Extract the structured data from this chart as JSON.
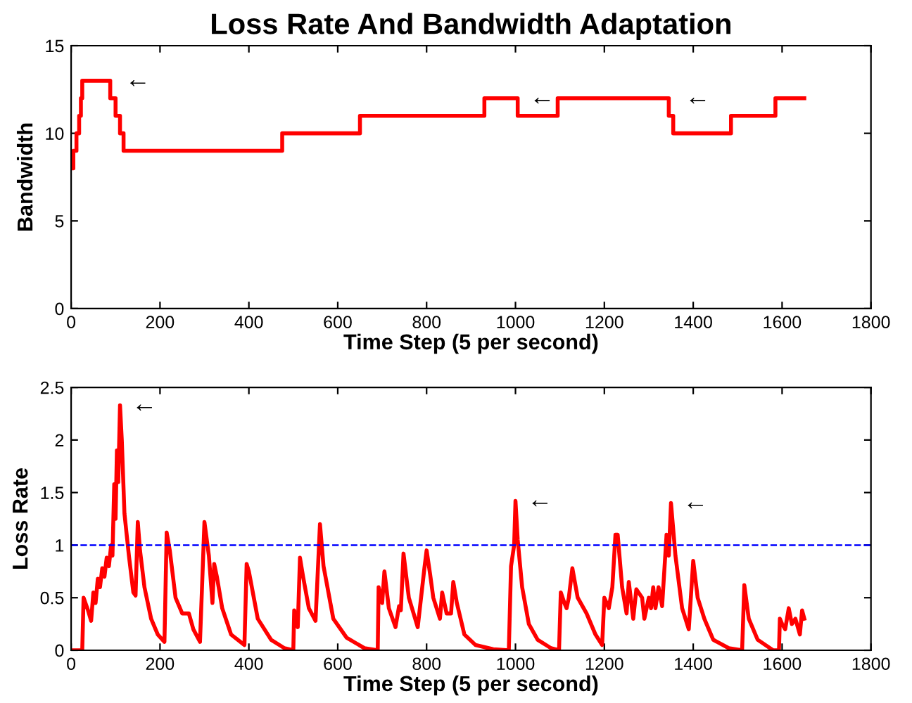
{
  "chart_data": [
    {
      "type": "step",
      "title": "Loss Rate And Bandwidth Adaptation",
      "xlabel": "Time Step (5 per second)",
      "ylabel": "Bandwidth",
      "xlim": [
        0,
        1800
      ],
      "xticks": [
        0,
        200,
        400,
        600,
        800,
        1000,
        1200,
        1400,
        1600,
        1800
      ],
      "ylim": [
        0,
        15
      ],
      "yticks": [
        0,
        5,
        10,
        15
      ],
      "grid": false,
      "series": [
        {
          "color": "#ff0000",
          "x": [
            0,
            5,
            12,
            18,
            22,
            25,
            88,
            100,
            110,
            118,
            475,
            650,
            930,
            1005,
            1095,
            1345,
            1355,
            1485,
            1585,
            1650
          ],
          "values": [
            8,
            9,
            10,
            11,
            12,
            13,
            12,
            11,
            10,
            9,
            10,
            11,
            12,
            11,
            12,
            11,
            10,
            11,
            12,
            12
          ]
        }
      ],
      "annotations": [
        {
          "text": "←",
          "x": 95,
          "y": 13
        },
        {
          "text": "←",
          "x": 1005,
          "y": 12
        },
        {
          "text": "←",
          "x": 1355,
          "y": 12
        }
      ]
    },
    {
      "type": "line",
      "xlabel": "Time Step (5 per second)",
      "ylabel": "Loss Rate",
      "xlim": [
        0,
        1800
      ],
      "xticks": [
        0,
        200,
        400,
        600,
        800,
        1000,
        1200,
        1400,
        1600,
        1800
      ],
      "ylim": [
        0,
        2.5
      ],
      "yticks": [
        0,
        0.5,
        1,
        1.5,
        2,
        2.5
      ],
      "grid": false,
      "ref_lines": [
        {
          "axis": "y",
          "value": 1,
          "color": "#0000ff",
          "line_style": "dashed"
        }
      ],
      "series": [
        {
          "color": "#ff0000",
          "x": [
            0,
            25,
            28,
            38,
            45,
            50,
            55,
            60,
            65,
            70,
            75,
            80,
            85,
            90,
            93,
            97,
            100,
            103,
            106,
            110,
            114,
            120,
            130,
            140,
            145,
            150,
            155,
            165,
            180,
            195,
            210,
            215,
            222,
            235,
            250,
            265,
            275,
            290,
            300,
            310,
            318,
            322,
            328,
            340,
            360,
            390,
            395,
            400,
            420,
            450,
            480,
            500,
            502,
            510,
            515,
            522,
            535,
            550,
            560,
            568,
            590,
            620,
            660,
            690,
            692,
            700,
            705,
            715,
            730,
            738,
            742,
            748,
            760,
            780,
            795,
            800,
            808,
            815,
            830,
            835,
            845,
            855,
            860,
            868,
            885,
            910,
            950,
            985,
            990,
            997,
            1000,
            1005,
            1015,
            1030,
            1050,
            1080,
            1098,
            1102,
            1110,
            1115,
            1120,
            1128,
            1140,
            1160,
            1180,
            1195,
            1200,
            1210,
            1218,
            1225,
            1230,
            1240,
            1250,
            1255,
            1265,
            1272,
            1285,
            1290,
            1300,
            1305,
            1310,
            1315,
            1322,
            1330,
            1340,
            1345,
            1350,
            1360,
            1375,
            1390,
            1400,
            1410,
            1425,
            1445,
            1480,
            1510,
            1515,
            1525,
            1545,
            1580,
            1593,
            1595,
            1600,
            1607,
            1615,
            1622,
            1630,
            1640,
            1645,
            1650
          ],
          "values": [
            0,
            0,
            0.5,
            0.38,
            0.28,
            0.55,
            0.45,
            0.68,
            0.6,
            0.78,
            0.7,
            0.88,
            0.8,
            1.0,
            0.9,
            1.58,
            1.25,
            1.9,
            1.6,
            2.33,
            2.0,
            1.3,
            0.9,
            0.55,
            0.52,
            1.22,
            0.95,
            0.6,
            0.3,
            0.15,
            0.08,
            1.12,
            0.95,
            0.5,
            0.35,
            0.35,
            0.2,
            0.08,
            1.22,
            0.9,
            0.45,
            0.82,
            0.7,
            0.4,
            0.15,
            0.05,
            0.82,
            0.75,
            0.3,
            0.1,
            0.02,
            0.0,
            0.38,
            0.22,
            0.88,
            0.7,
            0.4,
            0.28,
            1.2,
            0.8,
            0.3,
            0.12,
            0.02,
            0,
            0.6,
            0.45,
            0.75,
            0.4,
            0.22,
            0.42,
            0.38,
            0.92,
            0.5,
            0.22,
            0.78,
            0.95,
            0.72,
            0.5,
            0.3,
            0.55,
            0.35,
            0.35,
            0.65,
            0.45,
            0.15,
            0.05,
            0.01,
            0,
            0.8,
            1.0,
            1.42,
            1.05,
            0.6,
            0.25,
            0.1,
            0.02,
            0,
            0.55,
            0.45,
            0.4,
            0.5,
            0.78,
            0.5,
            0.35,
            0.15,
            0.05,
            0.5,
            0.4,
            0.6,
            1.1,
            1.1,
            0.6,
            0.35,
            0.65,
            0.3,
            0.58,
            0.5,
            0.3,
            0.5,
            0.4,
            0.6,
            0.4,
            0.6,
            0.42,
            1.1,
            0.9,
            1.4,
            0.9,
            0.4,
            0.2,
            0.85,
            0.5,
            0.3,
            0.1,
            0.02,
            0,
            0.62,
            0.3,
            0.1,
            0,
            0,
            0.3,
            0.25,
            0.2,
            0.4,
            0.25,
            0.3,
            0.15,
            0.38,
            0.3
          ]
        }
      ],
      "annotations": [
        {
          "text": "←",
          "x": 110,
          "y": 2.33
        },
        {
          "text": "←",
          "x": 1000,
          "y": 1.42
        },
        {
          "text": "←",
          "x": 1350,
          "y": 1.4
        }
      ]
    }
  ]
}
